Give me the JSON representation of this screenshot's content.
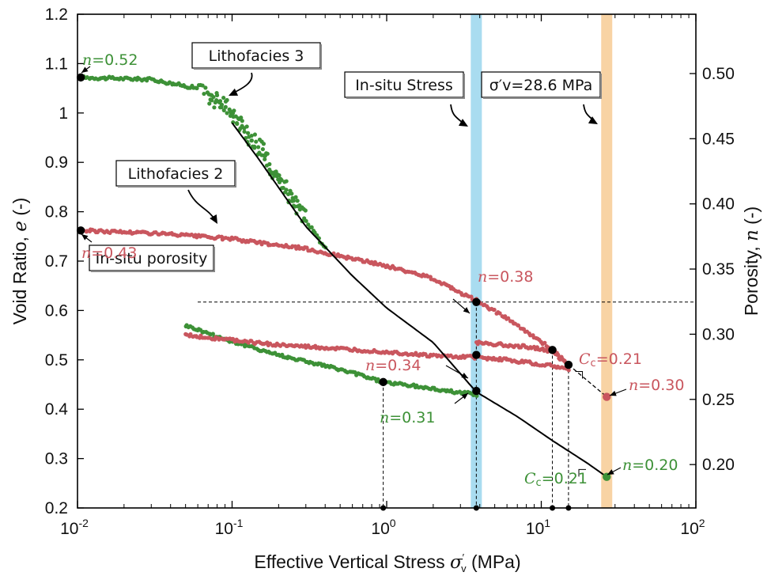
{
  "chart_data": {
    "type": "scatter",
    "x_scale": "log",
    "xlim": [
      0.01,
      100
    ],
    "ylim": [
      0.2,
      1.2
    ],
    "y2lim": [
      0.1667,
      0.5455
    ],
    "x_ticks": [
      {
        "value": 0.01,
        "base": "10",
        "exp": "-2"
      },
      {
        "value": 0.1,
        "base": "10",
        "exp": "-1"
      },
      {
        "value": 1,
        "base": "10",
        "exp": "0"
      },
      {
        "value": 10,
        "base": "10",
        "exp": "1"
      },
      {
        "value": 100,
        "base": "10",
        "exp": "2"
      }
    ],
    "y_ticks": [
      {
        "value": 0.2,
        "label": "0.2"
      },
      {
        "value": 0.3,
        "label": "0.3"
      },
      {
        "value": 0.4,
        "label": "0.4"
      },
      {
        "value": 0.5,
        "label": "0.5"
      },
      {
        "value": 0.6,
        "label": "0.6"
      },
      {
        "value": 0.7,
        "label": "0.7"
      },
      {
        "value": 0.8,
        "label": "0.8"
      },
      {
        "value": 0.9,
        "label": "0.9"
      },
      {
        "value": 1.0,
        "label": "1"
      },
      {
        "value": 1.1,
        "label": "1.1"
      },
      {
        "value": 1.2,
        "label": "1.2"
      }
    ],
    "y2_ticks": [
      {
        "value": 0.2,
        "label": "0.20"
      },
      {
        "value": 0.25,
        "label": "0.25"
      },
      {
        "value": 0.3,
        "label": "0.30"
      },
      {
        "value": 0.35,
        "label": "0.35"
      },
      {
        "value": 0.4,
        "label": "0.40"
      },
      {
        "value": 0.45,
        "label": "0.45"
      },
      {
        "value": 0.5,
        "label": "0.50"
      }
    ],
    "xlabel": {
      "main": "Effective Vertical Stress",
      "sym": "σ",
      "sup": "′",
      "sub": "v",
      "unit": "(MPa)"
    },
    "ylabel": {
      "main": "Void Ratio, ",
      "sym": "e",
      "unit": " (-)"
    },
    "y2label": {
      "main": "Porosity, ",
      "sym": "n",
      "unit": " (-)"
    },
    "colors": {
      "green": "#3d9137",
      "red": "#c9565e",
      "blue_band": "#a9dcf0",
      "orange_band": "#f8d3a4",
      "black": "#000000"
    },
    "bands": [
      {
        "name": "in-situ-stress-band",
        "x_center": 3.8,
        "color": "#a9dcf0"
      },
      {
        "name": "max-stress-band",
        "x_center": 26.5,
        "color": "#f8d3a4"
      }
    ],
    "series": [
      {
        "key": "green_loading",
        "color": "#3d9137",
        "scatter": [
          0.0105,
          1.072,
          0.03,
          1.068,
          0.06,
          1.05,
          0.1,
          1.0,
          0.15,
          0.93,
          0.25,
          0.82,
          0.4,
          0.725
        ]
      },
      {
        "key": "green_unloading",
        "color": "#3d9137",
        "scatter": [
          0.05,
          0.57,
          0.1,
          0.537,
          0.2,
          0.51,
          0.4,
          0.488,
          0.7,
          0.468,
          0.95,
          0.455,
          1.5,
          0.447,
          2.5,
          0.437,
          3.8,
          0.43
        ]
      },
      {
        "key": "red_loading",
        "color": "#c9565e",
        "scatter": [
          0.0105,
          0.762,
          0.03,
          0.757,
          0.1,
          0.745,
          0.3,
          0.725,
          0.6,
          0.705,
          1.0,
          0.69,
          2.0,
          0.665,
          3.8,
          0.62,
          6.0,
          0.585,
          9.0,
          0.545,
          12.0,
          0.52,
          15.0,
          0.49
        ]
      },
      {
        "key": "red_unloading_upper",
        "color": "#c9565e",
        "scatter": [
          3.8,
          0.535,
          6.0,
          0.53,
          9.0,
          0.525,
          12.0,
          0.515,
          15.0,
          0.49
        ]
      },
      {
        "key": "red_unloading_lower",
        "color": "#c9565e",
        "scatter": [
          0.05,
          0.55,
          0.1,
          0.54,
          0.2,
          0.53,
          0.5,
          0.522,
          1.0,
          0.516,
          2.0,
          0.508,
          3.8,
          0.505,
          6.0,
          0.5,
          9.0,
          0.493,
          12.0,
          0.487,
          15.0,
          0.48
        ]
      }
    ],
    "fit_curve": [
      0.1,
      0.98,
      0.15,
      0.905,
      0.3,
      0.77,
      0.6,
      0.67,
      1.0,
      0.605,
      2.0,
      0.535,
      3.8,
      0.435,
      7.0,
      0.385,
      12.0,
      0.335,
      20.0,
      0.29,
      26.5,
      0.263
    ],
    "red_dashed_ext": [
      15.0,
      0.49,
      26.5,
      0.425
    ],
    "in_situ_porosity_line": 0.617,
    "key_points": [
      {
        "x": 0.0105,
        "y": 1.072,
        "color": "#000000"
      },
      {
        "x": 0.0105,
        "y": 0.762,
        "color": "#000000"
      },
      {
        "x": 3.8,
        "y": 0.617,
        "color": "#000000"
      },
      {
        "x": 3.8,
        "y": 0.51,
        "color": "#000000"
      },
      {
        "x": 3.8,
        "y": 0.437,
        "color": "#000000"
      },
      {
        "x": 0.95,
        "y": 0.455,
        "color": "#000000"
      },
      {
        "x": 11.8,
        "y": 0.52,
        "color": "#000000"
      },
      {
        "x": 15.0,
        "y": 0.49,
        "color": "#000000"
      },
      {
        "x": 26.5,
        "y": 0.425,
        "color": "#c9565e"
      },
      {
        "x": 26.5,
        "y": 0.263,
        "color": "#3d9137"
      }
    ],
    "drop_lines": [
      0.95,
      3.8,
      11.8,
      15.0
    ],
    "drop_line_tops": [
      0.455,
      0.617,
      0.52,
      0.49
    ],
    "annotations": {
      "n052": "n=0.52",
      "n043": "n=0.43",
      "n038": "n=0.38",
      "n034": "n=0.34",
      "n031": "n=0.31",
      "n030": "n=0.30",
      "n020": "n=0.20",
      "cc_red": "Cc=0.21",
      "cc_green": "Cc=0.21"
    },
    "boxes": {
      "lithofacies3": "Lithofacies 3",
      "lithofacies2": "Lithofacies 2",
      "in_situ_stress": "In-situ Stress",
      "sigma_v": "σ′v=28.6 MPa",
      "in_situ_porosity": "In-situ porosity"
    }
  }
}
